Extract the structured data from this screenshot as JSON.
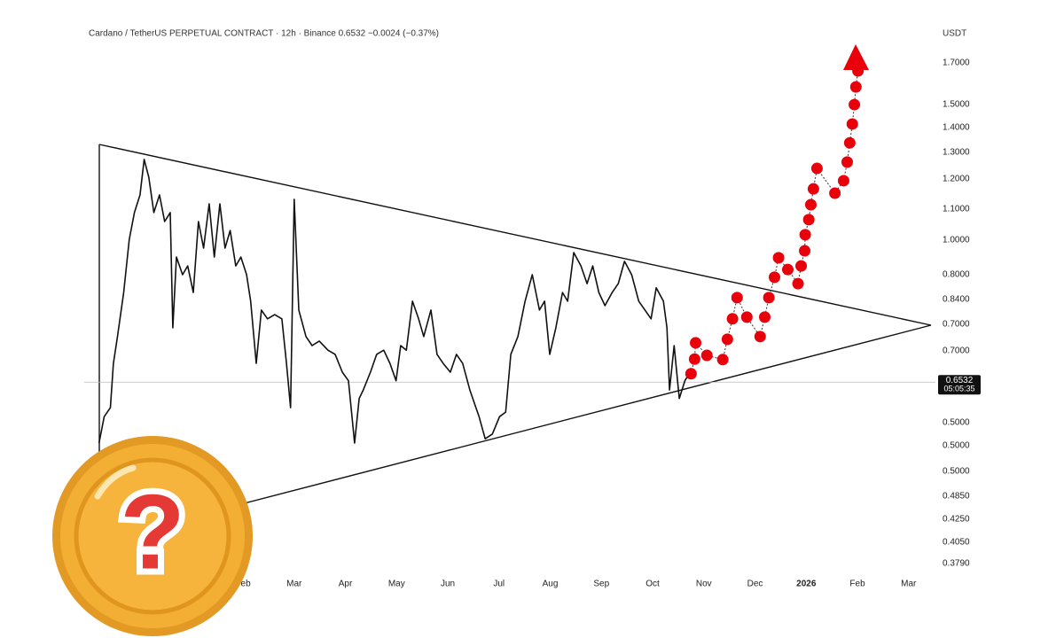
{
  "chart_data": {
    "type": "line",
    "title": "Cardano / TetherUS PERPETUAL CONTRACT · 12h · Binance  0.6532  −0.0024 (−0.37%)",
    "unit": "USDT",
    "log_scale": true,
    "color": "#111111",
    "xlim": [
      -2.1,
      14.35
    ],
    "ylim": [
      0.365,
      1.85
    ],
    "xticks": [
      {
        "value": 1,
        "label": "Feb"
      },
      {
        "value": 2,
        "label": "Mar"
      },
      {
        "value": 3,
        "label": "Apr"
      },
      {
        "value": 4,
        "label": "May"
      },
      {
        "value": 5,
        "label": "Jun"
      },
      {
        "value": 6,
        "label": "Jul"
      },
      {
        "value": 7,
        "label": "Aug"
      },
      {
        "value": 8,
        "label": "Sep"
      },
      {
        "value": 9,
        "label": "Oct"
      },
      {
        "value": 10,
        "label": "Nov"
      },
      {
        "value": 11,
        "label": "Dec"
      },
      {
        "value": 12,
        "label": "2026"
      },
      {
        "value": 13,
        "label": "Feb"
      },
      {
        "value": 14,
        "label": "Mar"
      }
    ],
    "y_axis_labels": [
      "1.7000",
      "1.5000",
      "1.4000",
      "1.3000",
      "1.2000",
      "1.1000",
      "1.0000",
      "0.8000",
      "0.8400",
      "0.7000",
      "0.7000",
      "0.5000",
      "0.5000",
      "0.5000",
      "0.4850",
      "0.4250",
      "0.4050",
      "0.3790"
    ],
    "last_price": {
      "value": 0.6532,
      "label": "0.6532",
      "countdown": "05:05:35"
    },
    "x": [
      -1.81,
      -1.71,
      -1.59,
      -1.53,
      -1.45,
      -1.33,
      -1.22,
      -1.12,
      -1.01,
      -0.93,
      -0.84,
      -0.74,
      -0.63,
      -0.53,
      -0.42,
      -0.37,
      -0.3,
      -0.18,
      -0.08,
      0.03,
      0.13,
      0.23,
      0.34,
      0.44,
      0.55,
      0.65,
      0.75,
      0.86,
      0.96,
      1.07,
      1.15,
      1.26,
      1.36,
      1.48,
      1.62,
      1.76,
      1.85,
      1.93,
      2.0,
      2.09,
      2.23,
      2.35,
      2.49,
      2.66,
      2.8,
      2.94,
      3.06,
      3.18,
      3.27,
      3.35,
      3.49,
      3.61,
      3.75,
      3.87,
      3.99,
      4.08,
      4.19,
      4.31,
      4.43,
      4.53,
      4.67,
      4.79,
      4.91,
      5.05,
      5.17,
      5.29,
      5.43,
      5.61,
      5.73,
      5.87,
      6.01,
      6.13,
      6.23,
      6.37,
      6.51,
      6.65,
      6.79,
      6.89,
      6.99,
      7.11,
      7.24,
      7.34,
      7.46,
      7.6,
      7.72,
      7.83,
      7.95,
      8.07,
      8.21,
      8.33,
      8.45,
      8.59,
      8.73,
      8.85,
      8.97,
      9.07,
      9.21,
      9.28,
      9.33,
      9.42,
      9.52,
      9.63,
      9.73
    ],
    "values": [
      0.544,
      0.589,
      0.605,
      0.691,
      0.749,
      0.855,
      1.003,
      1.087,
      1.146,
      1.275,
      1.209,
      1.087,
      1.146,
      1.058,
      1.087,
      0.769,
      0.951,
      0.902,
      0.926,
      0.855,
      1.058,
      0.977,
      1.116,
      0.951,
      1.116,
      0.977,
      1.03,
      0.926,
      0.951,
      0.902,
      0.833,
      0.691,
      0.811,
      0.79,
      0.8,
      0.79,
      0.691,
      0.605,
      1.131,
      0.811,
      0.749,
      0.729,
      0.739,
      0.719,
      0.71,
      0.673,
      0.656,
      0.544,
      0.622,
      0.638,
      0.673,
      0.71,
      0.719,
      0.691,
      0.656,
      0.729,
      0.719,
      0.833,
      0.79,
      0.749,
      0.811,
      0.71,
      0.691,
      0.673,
      0.71,
      0.691,
      0.638,
      0.589,
      0.551,
      0.559,
      0.589,
      0.597,
      0.71,
      0.749,
      0.833,
      0.902,
      0.811,
      0.833,
      0.71,
      0.769,
      0.855,
      0.833,
      0.964,
      0.926,
      0.878,
      0.926,
      0.855,
      0.822,
      0.855,
      0.878,
      0.939,
      0.902,
      0.833,
      0.811,
      0.79,
      0.867,
      0.833,
      0.769,
      0.638,
      0.729,
      0.622,
      0.656,
      0.673
    ],
    "projection": {
      "color": "#e8000b",
      "x": [
        9.75,
        9.82,
        9.84,
        10.06,
        10.37,
        10.46,
        10.56,
        10.65,
        10.84,
        11.1,
        11.19,
        11.27,
        11.38,
        11.46,
        11.64,
        11.84,
        11.9,
        11.97,
        11.98,
        12.05,
        12.09,
        12.14,
        12.21,
        12.56,
        12.73,
        12.8,
        12.85,
        12.9,
        12.94,
        12.97,
        13.01
      ],
      "values": [
        0.67,
        0.7,
        0.735,
        0.708,
        0.699,
        0.743,
        0.79,
        0.842,
        0.794,
        0.749,
        0.794,
        0.842,
        0.895,
        0.949,
        0.916,
        0.878,
        0.926,
        0.969,
        1.017,
        1.064,
        1.113,
        1.167,
        1.241,
        1.152,
        1.196,
        1.265,
        1.34,
        1.418,
        1.503,
        1.585,
        1.663
      ]
    },
    "overlay_symbol": "?"
  }
}
